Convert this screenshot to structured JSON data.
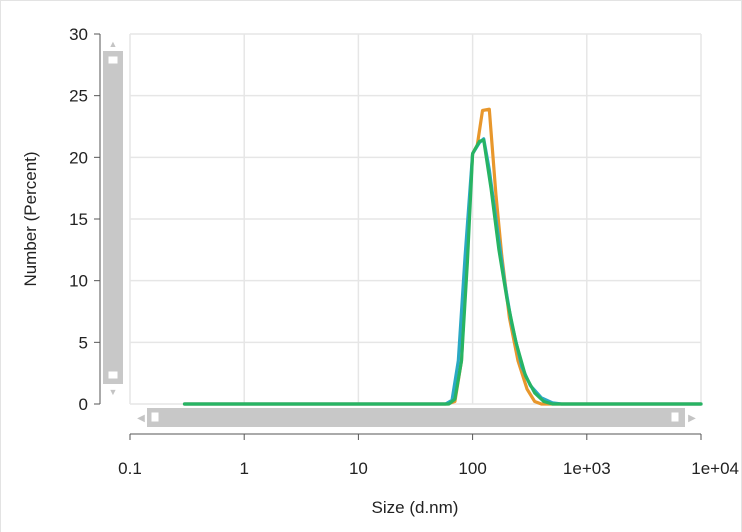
{
  "chart_data": {
    "type": "line",
    "xlabel": "Size (d.nm)",
    "ylabel": "Number (Percent)",
    "x_scale": "log",
    "xlim": [
      0.1,
      10000
    ],
    "ylim": [
      0,
      30
    ],
    "grid": true,
    "x_ticks": [
      0.1,
      1,
      10,
      100,
      1000,
      10000
    ],
    "x_tick_labels": [
      "0.1",
      "1",
      "10",
      "100",
      "1e+03",
      "1e+04"
    ],
    "y_ticks": [
      0,
      5,
      10,
      15,
      20,
      25,
      30
    ],
    "y_tick_labels": [
      "0",
      "5",
      "10",
      "15",
      "20",
      "25",
      "30"
    ],
    "series": [
      {
        "color": "#e8972c",
        "points": [
          [
            0.3,
            0
          ],
          [
            60,
            0
          ],
          [
            70,
            0.2
          ],
          [
            80,
            3.5
          ],
          [
            90,
            13
          ],
          [
            100,
            20.3
          ],
          [
            110,
            21
          ],
          [
            122,
            23.8
          ],
          [
            140,
            23.9
          ],
          [
            160,
            17
          ],
          [
            180,
            12
          ],
          [
            210,
            7
          ],
          [
            250,
            3.5
          ],
          [
            300,
            1.2
          ],
          [
            350,
            0.2
          ],
          [
            400,
            0
          ],
          [
            10000,
            0
          ]
        ]
      },
      {
        "color": "#2aa9c4",
        "points": [
          [
            0.3,
            0
          ],
          [
            58,
            0
          ],
          [
            66,
            0.3
          ],
          [
            75,
            3.5
          ],
          [
            86,
            12
          ],
          [
            100,
            20.3
          ],
          [
            115,
            21.2
          ],
          [
            125,
            21.5
          ],
          [
            140,
            19
          ],
          [
            160,
            15
          ],
          [
            190,
            10
          ],
          [
            220,
            6.5
          ],
          [
            270,
            3
          ],
          [
            320,
            1.5
          ],
          [
            400,
            0.5
          ],
          [
            500,
            0.1
          ],
          [
            600,
            0
          ],
          [
            10000,
            0
          ]
        ]
      },
      {
        "color": "#27b463",
        "points": [
          [
            0.3,
            0
          ],
          [
            62,
            0
          ],
          [
            70,
            0.4
          ],
          [
            80,
            3.5
          ],
          [
            90,
            11.5
          ],
          [
            100,
            20.3
          ],
          [
            115,
            21.3
          ],
          [
            125,
            21.4
          ],
          [
            145,
            17.5
          ],
          [
            170,
            12.5
          ],
          [
            200,
            8.5
          ],
          [
            240,
            5
          ],
          [
            290,
            2.3
          ],
          [
            350,
            0.9
          ],
          [
            420,
            0.2
          ],
          [
            500,
            0
          ],
          [
            10000,
            0
          ]
        ]
      }
    ]
  },
  "scrollbars": {
    "vertical": {
      "up_arrow": "▲",
      "down_arrow": "▼"
    },
    "horizontal": {
      "left_arrow": "◀",
      "right_arrow": "▶"
    }
  }
}
